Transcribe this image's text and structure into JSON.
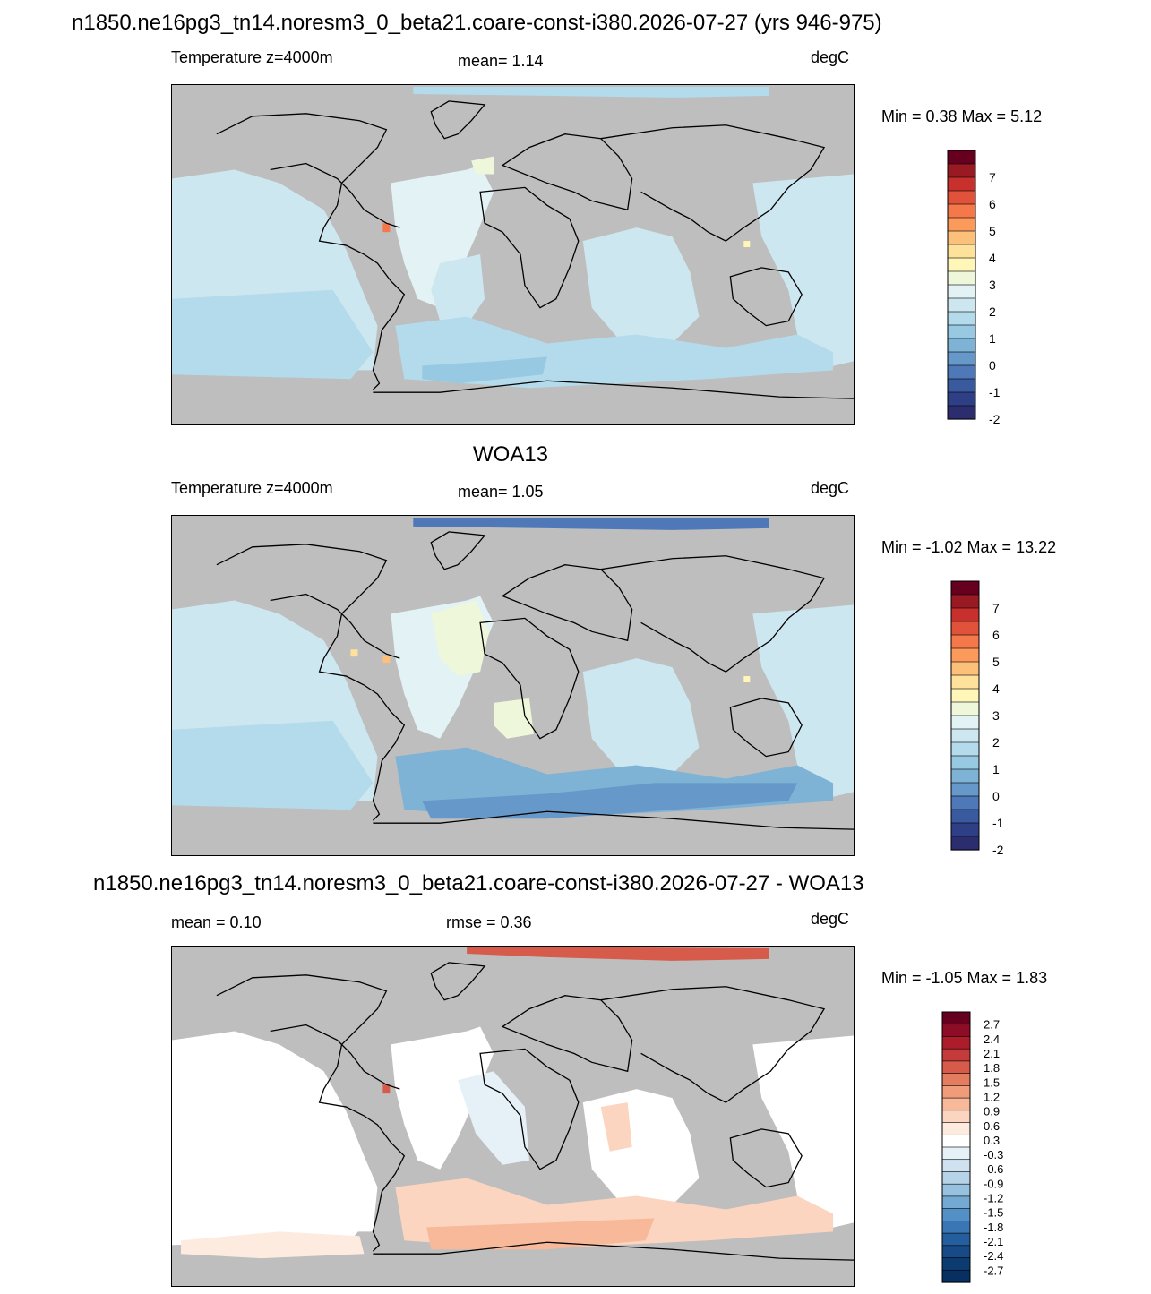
{
  "panels": [
    {
      "title": "n1850.ne16pg3_tn14.noresm3_0_beta21.coare-const-i380.2026-07-27 (yrs 946-975)",
      "left_label": "Temperature z=4000m",
      "center_label": "mean=   1.14",
      "right_label": "degC",
      "minmax": "Min =   0.38 Max =   5.12",
      "colorbar": {
        "labels": [
          "7",
          "6",
          "5",
          "4",
          "3",
          "2",
          "1",
          "0",
          "-1",
          "-2"
        ],
        "colors": [
          "#67001f",
          "#9a1a24",
          "#c7302c",
          "#e0533a",
          "#f4784a",
          "#fb9a5b",
          "#fdc07a",
          "#fee29b",
          "#fff6b8",
          "#eef7da",
          "#e2f2f5",
          "#cde7f0",
          "#b3dbeb",
          "#97c9e2",
          "#7eb3d6",
          "#6698c9",
          "#4e78b7",
          "#3a5aa0",
          "#2f3f86",
          "#2c2d6e"
        ]
      }
    },
    {
      "title": "WOA13",
      "left_label": "Temperature z=4000m",
      "center_label": "mean=   1.05",
      "right_label": "degC",
      "minmax": "Min =  -1.02 Max =  13.22",
      "colorbar": {
        "labels": [
          "7",
          "6",
          "5",
          "4",
          "3",
          "2",
          "1",
          "0",
          "-1",
          "-2"
        ],
        "colors": [
          "#67001f",
          "#9a1a24",
          "#c7302c",
          "#e0533a",
          "#f4784a",
          "#fb9a5b",
          "#fdc07a",
          "#fee29b",
          "#fff6b8",
          "#eef7da",
          "#e2f2f5",
          "#cde7f0",
          "#b3dbeb",
          "#97c9e2",
          "#7eb3d6",
          "#6698c9",
          "#4e78b7",
          "#3a5aa0",
          "#2f3f86",
          "#2c2d6e"
        ]
      }
    },
    {
      "title": "n1850.ne16pg3_tn14.noresm3_0_beta21.coare-const-i380.2026-07-27 - WOA13",
      "left_label": "mean =   0.10",
      "center_label": "rmse =   0.36",
      "right_label": "degC",
      "minmax": "Min =  -1.05 Max =   1.83",
      "colorbar": {
        "labels": [
          "2.7",
          "2.4",
          "2.1",
          "1.8",
          "1.5",
          "1.2",
          "0.9",
          "0.6",
          "0.3",
          "-0.3",
          "-0.6",
          "-0.9",
          "-1.2",
          "-1.5",
          "-1.8",
          "-2.1",
          "-2.4",
          "-2.7"
        ],
        "colors": [
          "#67001f",
          "#8c0d25",
          "#ac1c2b",
          "#c53a3a",
          "#d65b4a",
          "#e47c60",
          "#f09c7b",
          "#f7b99a",
          "#fbd5bf",
          "#fdebe0",
          "#ffffff",
          "#e6f0f7",
          "#d0e2ef",
          "#b6d3e8",
          "#96c1df",
          "#73a9d3",
          "#5390c5",
          "#3a76b4",
          "#255e9f",
          "#174a86",
          "#0b3b6f",
          "#053061"
        ]
      }
    }
  ]
}
